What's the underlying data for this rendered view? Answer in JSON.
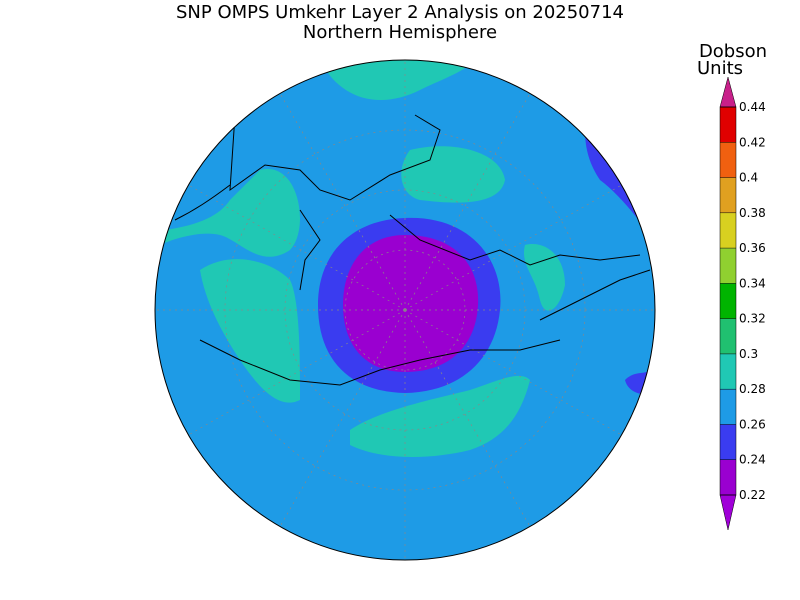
{
  "header": {
    "title": "SNP OMPS Umkehr Layer 2 Analysis on 20250714",
    "subtitle": "Northern Hemisphere"
  },
  "colorbar": {
    "label": [
      "Dobson",
      "Units"
    ],
    "ticks": [
      0.22,
      0.24,
      0.26,
      0.28,
      0.3,
      0.32,
      0.34,
      0.36,
      0.38,
      0.4,
      0.42,
      0.44
    ],
    "colors": [
      "#9a00d0",
      "#3a3cf0",
      "#1e9be6",
      "#20c8b4",
      "#20c070",
      "#00b400",
      "#90d030",
      "#d8d020",
      "#e0a020",
      "#f06010",
      "#e00000"
    ],
    "under_color": "#a000d8",
    "over_color": "#c8208a"
  }
}
